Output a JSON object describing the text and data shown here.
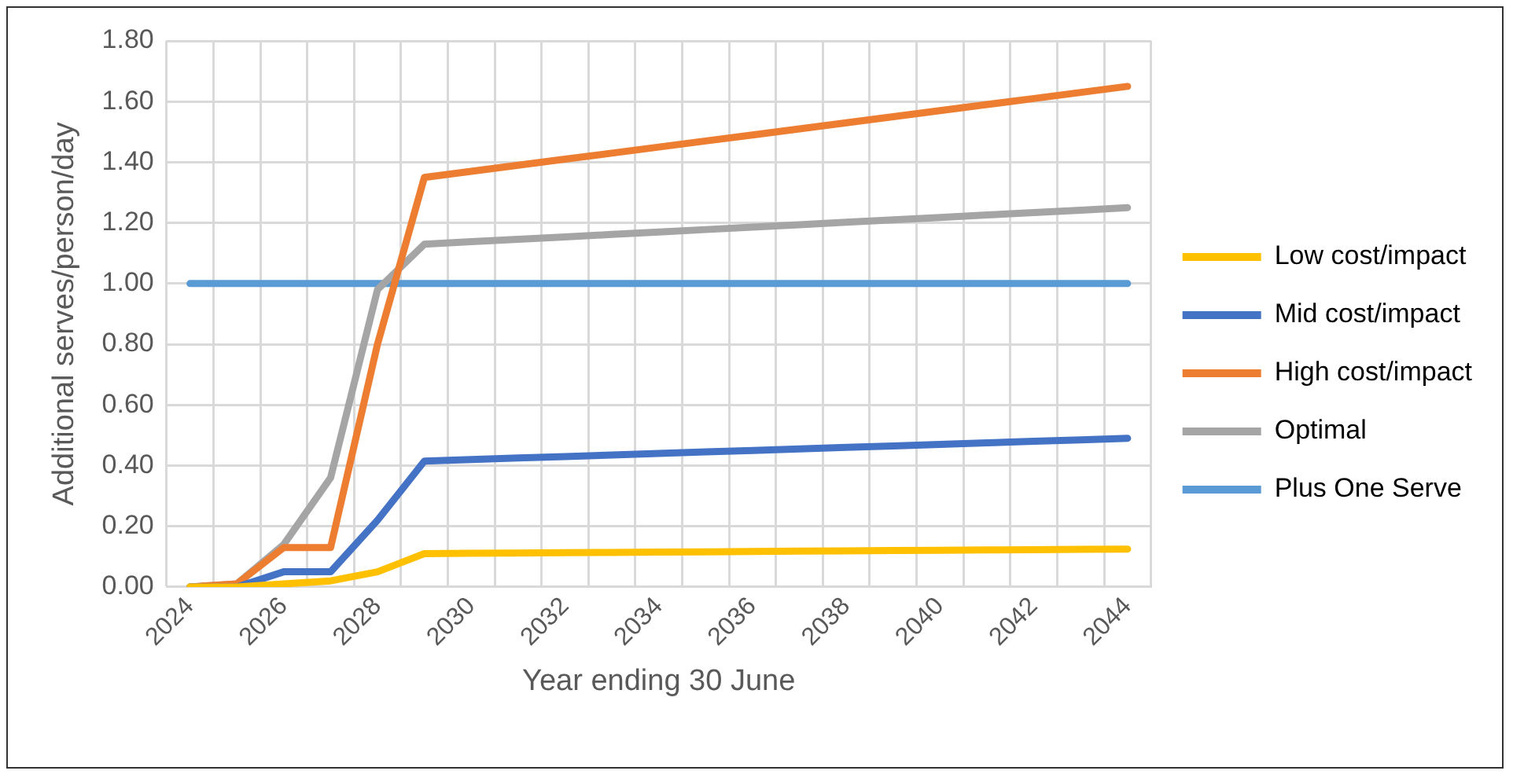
{
  "chart_data": {
    "type": "line",
    "xlabel": "Year ending 30 June",
    "ylabel": "Additional serves/person/day",
    "categories": [
      "2024",
      null,
      "2026",
      null,
      "2028",
      null,
      "2030",
      null,
      "2032",
      null,
      "2034",
      null,
      "2036",
      null,
      "2038",
      null,
      "2040",
      null,
      "2042",
      null,
      "2044"
    ],
    "series": [
      {
        "name": "Low cost/impact",
        "color": "#ffc000",
        "values": [
          0,
          0,
          0.01,
          0.02,
          0.05,
          0.11,
          0.111,
          0.112,
          0.113,
          0.114,
          0.115,
          0.116,
          0.117,
          0.118,
          0.119,
          0.12,
          0.121,
          0.122,
          0.123,
          0.124,
          0.125
        ]
      },
      {
        "name": "Mid cost/impact",
        "color": "#4472c4",
        "values": [
          0,
          0,
          0.05,
          0.05,
          0.22,
          0.415,
          0.42,
          0.425,
          0.43,
          0.435,
          0.44,
          0.445,
          0.45,
          0.455,
          0.46,
          0.465,
          0.47,
          0.475,
          0.48,
          0.485,
          0.49
        ]
      },
      {
        "name": "High cost/impact",
        "color": "#ed7d31",
        "values": [
          0,
          0.01,
          0.13,
          0.13,
          0.8,
          1.35,
          1.37,
          1.39,
          1.41,
          1.43,
          1.45,
          1.47,
          1.49,
          1.51,
          1.53,
          1.55,
          1.57,
          1.59,
          1.61,
          1.63,
          1.65
        ]
      },
      {
        "name": "Optimal",
        "color": "#a5a5a5",
        "values": [
          0,
          0.01,
          0.14,
          0.36,
          0.98,
          1.13,
          1.138,
          1.146,
          1.154,
          1.162,
          1.17,
          1.178,
          1.186,
          1.194,
          1.202,
          1.21,
          1.218,
          1.226,
          1.234,
          1.242,
          1.25
        ]
      },
      {
        "name": "Plus One Serve",
        "color": "#5b9bd5",
        "values": [
          1,
          1,
          1,
          1,
          1,
          1,
          1,
          1,
          1,
          1,
          1,
          1,
          1,
          1,
          1,
          1,
          1,
          1,
          1,
          1,
          1
        ]
      }
    ],
    "ylim": [
      0,
      1.8
    ],
    "yticks": [
      {
        "value": 0,
        "label": "0.00"
      },
      {
        "value": 0.2,
        "label": "0.20"
      },
      {
        "value": 0.4,
        "label": "0.40"
      },
      {
        "value": 0.6,
        "label": "0.60"
      },
      {
        "value": 0.8,
        "label": "0.80"
      },
      {
        "value": 1,
        "label": "1.00"
      },
      {
        "value": 1.2,
        "label": "1.20"
      },
      {
        "value": 1.4,
        "label": "1.40"
      },
      {
        "value": 1.6,
        "label": "1.60"
      },
      {
        "value": 1.8,
        "label": "1.80"
      }
    ],
    "grid": true,
    "legend": "right",
    "marker": "none",
    "line_style": "solid"
  }
}
